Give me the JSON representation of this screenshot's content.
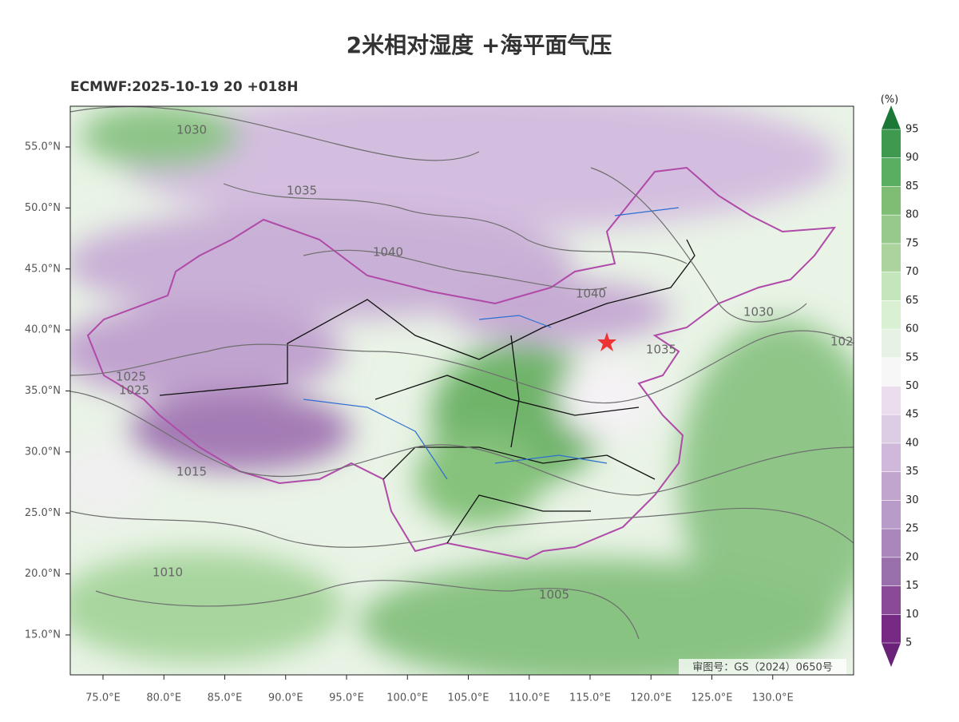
{
  "title": "2米相对湿度 +海平面气压",
  "subtitle": "ECMWF:2025-10-19 20 +018H",
  "map": {
    "lat_labels": [
      {
        "value": 15,
        "label": "15.0°N"
      },
      {
        "value": 20,
        "label": "20.0°N"
      },
      {
        "value": 25,
        "label": "25.0°N"
      },
      {
        "value": 30,
        "label": "30.0°N"
      },
      {
        "value": 35,
        "label": "35.0°N"
      },
      {
        "value": 40,
        "label": "40.0°N"
      },
      {
        "value": 45,
        "label": "45.0°N"
      },
      {
        "value": 50,
        "label": "50.0°N"
      },
      {
        "value": 55,
        "label": "55.0°N"
      }
    ],
    "lon_labels": [
      {
        "value": 75,
        "label": "75.0°E"
      },
      {
        "value": 80,
        "label": "80.0°E"
      },
      {
        "value": 85,
        "label": "85.0°E"
      },
      {
        "value": 90,
        "label": "90.0°E"
      },
      {
        "value": 95,
        "label": "95.0°E"
      },
      {
        "value": 100,
        "label": "100.0°E"
      },
      {
        "value": 105,
        "label": "105.0°E"
      },
      {
        "value": 110,
        "label": "110.0°E"
      },
      {
        "value": 115,
        "label": "115.0°E"
      },
      {
        "value": 120,
        "label": "120.0°E"
      },
      {
        "value": 125,
        "label": "125.0°E"
      },
      {
        "value": 130,
        "label": "130.0°E"
      }
    ],
    "contour_labels": [
      1030,
      1035,
      1040,
      1040,
      1030,
      1035,
      1025,
      1025,
      1015,
      1010,
      1005,
      "102"
    ],
    "approval": "审图号：GS（2024）0650号"
  },
  "colorbar": {
    "unit": "(%)",
    "ticks": [
      5,
      10,
      15,
      20,
      25,
      30,
      35,
      40,
      45,
      50,
      55,
      60,
      65,
      70,
      75,
      80,
      85,
      90,
      95
    ],
    "colors": [
      "#762a83",
      "#8a4a97",
      "#9970ab",
      "#a986bb",
      "#b89bc8",
      "#c2a5cf",
      "#cfb8da",
      "#dccce4",
      "#ebdcee",
      "#f7f7f7",
      "#e6f2e3",
      "#d9f0d3",
      "#c4e6bd",
      "#acd39e",
      "#97c98a",
      "#7fbc74",
      "#5aae61",
      "#3f9a50"
    ],
    "under_color": "#6a2278",
    "over_color": "#1b7837"
  }
}
